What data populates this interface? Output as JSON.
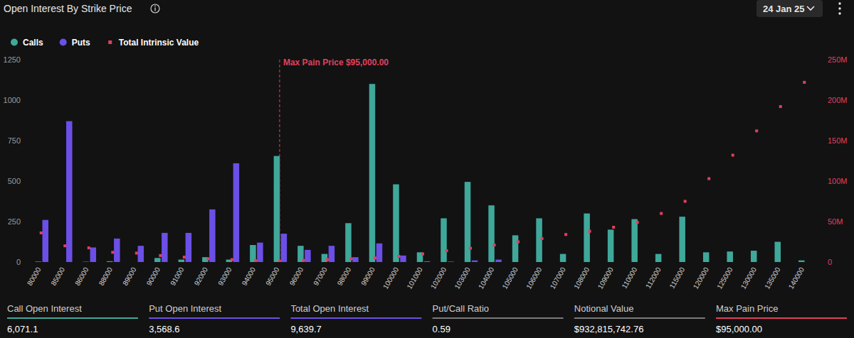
{
  "chart_data": {
    "type": "bar",
    "title": "Open Interest By Strike Price",
    "categories": [
      "80000",
      "85000",
      "86000",
      "88000",
      "89000",
      "90000",
      "91000",
      "92000",
      "93000",
      "94000",
      "95000",
      "96000",
      "97000",
      "98000",
      "99000",
      "100000",
      "101000",
      "102000",
      "103000",
      "104000",
      "105000",
      "106000",
      "107000",
      "108000",
      "109000",
      "110000",
      "112000",
      "115000",
      "120000",
      "125000",
      "130000",
      "135000",
      "140000"
    ],
    "series": [
      {
        "name": "Calls",
        "type": "bar",
        "color": "#3fa89a",
        "values": [
          3,
          0,
          2,
          5,
          0,
          25,
          15,
          30,
          15,
          105,
          655,
          100,
          50,
          240,
          1100,
          480,
          60,
          270,
          495,
          350,
          165,
          270,
          50,
          300,
          200,
          265,
          50,
          280,
          60,
          65,
          70,
          125,
          10
        ]
      },
      {
        "name": "Puts",
        "type": "bar",
        "color": "#6b4fe6",
        "values": [
          260,
          870,
          90,
          145,
          100,
          180,
          180,
          325,
          610,
          120,
          175,
          75,
          100,
          30,
          115,
          40,
          5,
          3,
          10,
          15,
          0,
          0,
          0,
          0,
          0,
          0,
          0,
          0,
          0,
          0,
          0,
          0,
          0
        ]
      },
      {
        "name": "Total Intrinsic Value",
        "type": "scatter",
        "marker": "square",
        "axis": "y2",
        "color": "#e0405e",
        "values": [
          36000000,
          20000000,
          17500000,
          12000000,
          11000000,
          8000000,
          6000000,
          4000000,
          3000000,
          1500000,
          1000000,
          2000000,
          3000000,
          4000000,
          5000000,
          7000000,
          10000000,
          14000000,
          17000000,
          21000000,
          25000000,
          29000000,
          34000000,
          38000000,
          43000000,
          49000000,
          60000000,
          75000000,
          103000000,
          132000000,
          162000000,
          192000000,
          222000000
        ]
      }
    ],
    "ylim": [
      0,
      1250
    ],
    "yticks": [
      0,
      250,
      500,
      750,
      1000,
      1250
    ],
    "y2lim": [
      0,
      250000000
    ],
    "y2ticks": [
      0,
      {
        "value": 50000000,
        "label": "50M"
      },
      {
        "value": 100000000,
        "label": "100M"
      },
      {
        "value": 150000000,
        "label": "150M"
      },
      {
        "value": 200000000,
        "label": "200M"
      },
      {
        "value": 250000000,
        "label": "250M"
      }
    ],
    "grid": false,
    "legend": "top-left",
    "annotations": [
      {
        "text": "Max Pain Price $95,000.00",
        "x": "95000"
      }
    ]
  },
  "header": {
    "date": "24 Jan 25"
  },
  "footer": {
    "stats": [
      {
        "label": "Call Open Interest",
        "value": "6,071.1"
      },
      {
        "label": "Put Open Interest",
        "value": "3,568.6"
      },
      {
        "label": "Total Open Interest",
        "value": "9,639.7"
      },
      {
        "label": "Put/Call Ratio",
        "value": "0.59"
      },
      {
        "label": "Notional Value",
        "value": "$932,815,742.76"
      },
      {
        "label": "Max Pain Price",
        "value": "$95,000.00"
      }
    ]
  }
}
